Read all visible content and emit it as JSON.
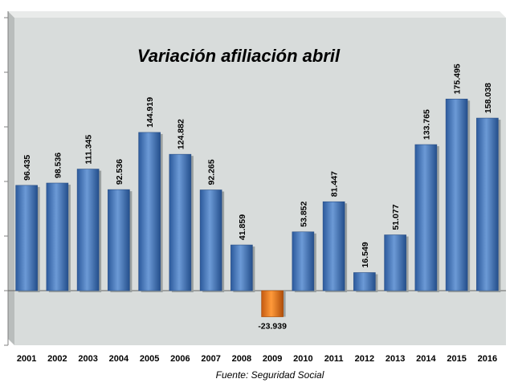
{
  "chart_data": {
    "type": "bar",
    "title": "Variación afiliación abril",
    "categories": [
      "2001",
      "2002",
      "2003",
      "2004",
      "2005",
      "2006",
      "2007",
      "2008",
      "2009",
      "2010",
      "2011",
      "2012",
      "2013",
      "2014",
      "2015",
      "2016"
    ],
    "values": [
      96435,
      98536,
      111345,
      92536,
      144919,
      124882,
      92265,
      41859,
      -23939,
      53852,
      81447,
      16549,
      51077,
      133765,
      175495,
      158038
    ],
    "value_labels": [
      "96.435",
      "98.536",
      "111.345",
      "92.536",
      "144.919",
      "124.882",
      "92.265",
      "41.859",
      "-23.939",
      "53.852",
      "81.447",
      "16.549",
      "51.077",
      "133.765",
      "175.495",
      "158.038"
    ],
    "ylim": [
      -50000,
      250000
    ],
    "xlabel": "",
    "ylabel": "",
    "grid": false,
    "source": "Fuente: Seguridad Social",
    "colors": {
      "positive": "#4a7fc4",
      "negative": "#f07a1a",
      "plot_bg": "#d8dcdb"
    }
  }
}
